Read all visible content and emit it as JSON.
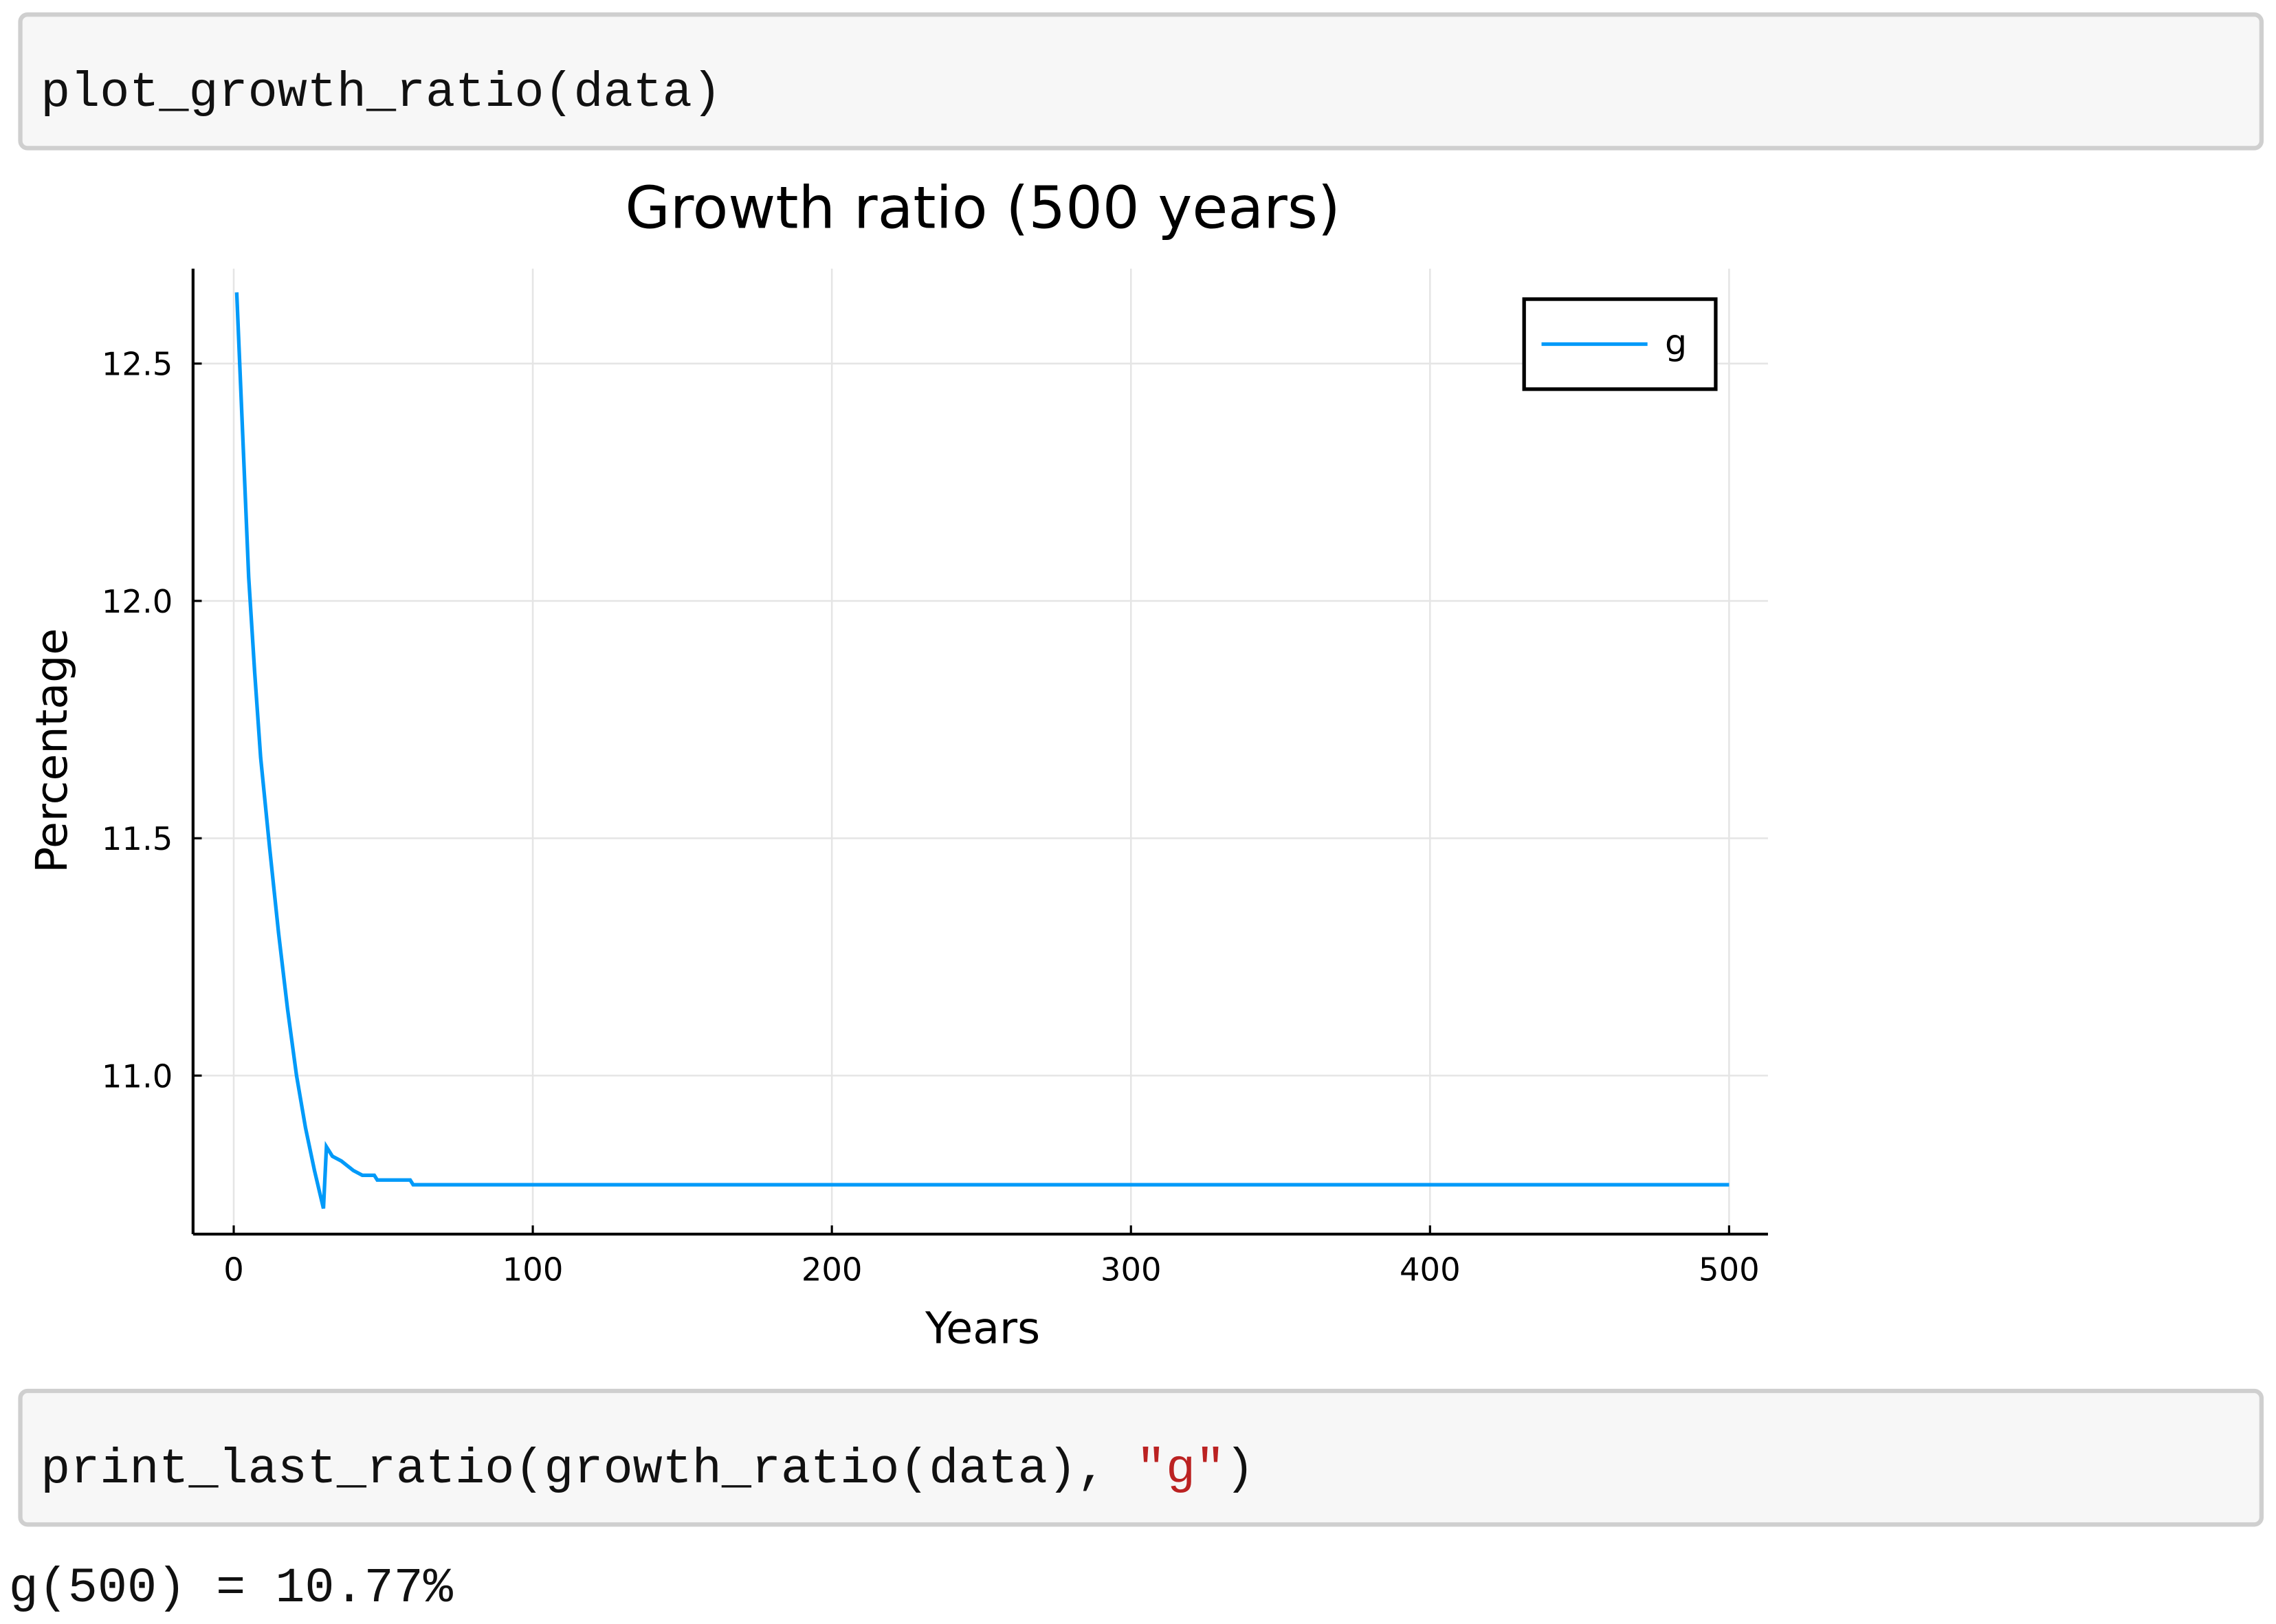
{
  "cells": [
    {
      "code": "plot_growth_ratio(data)"
    },
    {
      "code": "print_last_ratio(growth_ratio(data), ",
      "string": "\"g\"",
      "code_end": ")",
      "output": "g(500) = 10.77%"
    }
  ],
  "chart_data": {
    "type": "line",
    "title": "Growth ratio (500 years)",
    "x_label": "Years",
    "y_label": "Percentage",
    "x": [
      1,
      3,
      5,
      7,
      9,
      12,
      15,
      18,
      21,
      24,
      27,
      30,
      31,
      33,
      36,
      38,
      40,
      43,
      47,
      48,
      59,
      60,
      500
    ],
    "series": [
      {
        "name": "g",
        "color": "#009af9",
        "values": [
          12.65,
          12.35,
          12.05,
          11.85,
          11.67,
          11.48,
          11.3,
          11.14,
          11.0,
          10.89,
          10.8,
          10.72,
          10.85,
          10.83,
          10.82,
          10.81,
          10.8,
          10.79,
          10.79,
          10.78,
          10.78,
          10.77,
          10.77
        ]
      }
    ],
    "xlim": [
      -13.6,
      513
    ],
    "ylim": [
      10.666,
      12.7
    ],
    "xticks": [
      0,
      100,
      200,
      300,
      400,
      500
    ],
    "yticks": [
      {
        "value": 11,
        "label": "11.0"
      },
      11.5,
      {
        "value": 12,
        "label": "12.0"
      },
      12.5
    ],
    "grid": true,
    "legend": "top-right"
  }
}
